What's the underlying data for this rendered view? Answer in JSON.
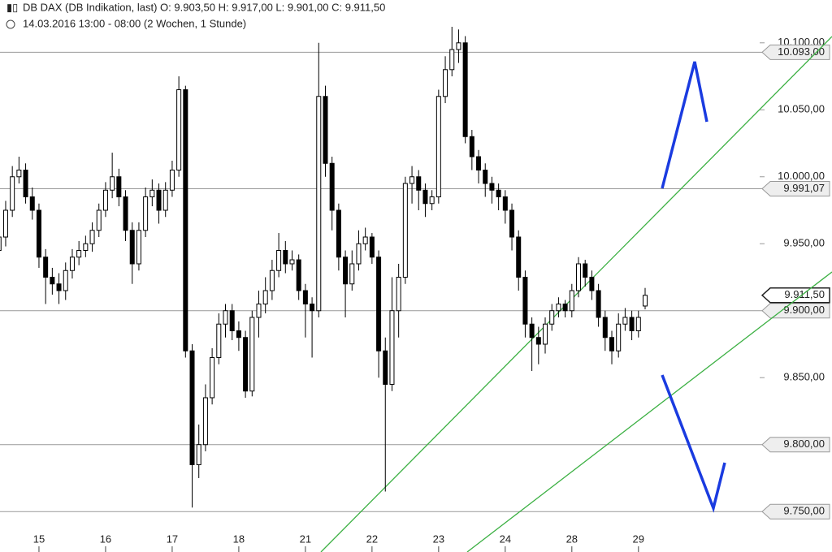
{
  "chart_data": {
    "type": "candlestick",
    "title": "DB DAX (DB Indikation, last)  O: 9.903,50  H: 9.917,00  L: 9.901,00  C: 9.911,50",
    "subtitle": "14.03.2016 13:00 - 08:00 (2 Wochen, 1 Stunde)",
    "x": [
      -6,
      -5,
      -4,
      -3,
      -2,
      -1,
      0,
      1,
      2,
      3,
      4,
      5,
      6,
      7,
      8,
      9,
      10,
      11,
      12,
      13,
      14,
      15,
      16,
      17,
      18,
      19,
      20,
      21,
      22,
      23,
      24,
      25,
      26,
      27,
      28,
      29,
      30,
      31,
      32,
      33,
      34,
      35,
      36,
      37,
      38,
      39,
      40,
      41,
      42,
      43,
      44,
      45,
      46,
      47,
      48,
      49,
      50,
      51,
      52,
      53,
      54,
      55,
      56,
      57,
      58,
      59,
      60,
      61,
      62,
      63,
      64,
      65,
      66,
      67,
      68,
      69,
      70,
      71,
      72,
      73,
      74,
      75,
      76,
      77,
      78,
      79,
      80,
      81,
      82,
      83,
      84,
      85,
      86,
      87,
      88,
      89,
      90,
      91
    ],
    "open": [
      9945,
      9955,
      9975,
      10000,
      10005,
      9985,
      9975,
      9940,
      9925,
      9920,
      9915,
      9930,
      9940,
      9945,
      9950,
      9960,
      9975,
      9990,
      10000,
      9985,
      9960,
      9935,
      9960,
      9985,
      9990,
      9975,
      9990,
      10005,
      10065,
      9870,
      9785,
      9800,
      9835,
      9865,
      9890,
      9900,
      9885,
      9880,
      9840,
      9895,
      9905,
      9915,
      9930,
      9945,
      9935,
      9938,
      9915,
      9905,
      9900,
      10060,
      10010,
      9975,
      9940,
      9920,
      9935,
      9950,
      9955,
      9940,
      9870,
      9845,
      9900,
      9925,
      9995,
      10000,
      9990,
      9980,
      9985,
      10060,
      10080,
      10095,
      10100,
      10030,
      10015,
      10005,
      9995,
      9990,
      9985,
      9975,
      9955,
      9925,
      9890,
      9880,
      9875,
      9890,
      9900,
      9905,
      9900,
      9915,
      9935,
      9925,
      9915,
      9895,
      9880,
      9870,
      9890,
      9895,
      9885,
      9903.5
    ],
    "high": [
      9965,
      9982,
      10008,
      10015,
      10010,
      9992,
      9980,
      9946,
      9932,
      9928,
      9936,
      9946,
      9952,
      9956,
      9966,
      9980,
      9996,
      10018,
      10006,
      9990,
      9966,
      9966,
      9992,
      9998,
      9995,
      9996,
      10012,
      10075,
      10068,
      9875,
      9815,
      9845,
      9872,
      9898,
      9905,
      9905,
      9892,
      9885,
      9900,
      9915,
      9925,
      9938,
      9958,
      9952,
      9945,
      9942,
      9920,
      9910,
      10100,
      10068,
      10015,
      9980,
      9945,
      9945,
      9960,
      9962,
      9958,
      9945,
      9880,
      9925,
      9935,
      10000,
      10008,
      10005,
      9995,
      9990,
      10065,
      10090,
      10112,
      10110,
      10105,
      10035,
      10020,
      10010,
      10000,
      9995,
      9990,
      9980,
      9960,
      9930,
      9895,
      9888,
      9895,
      9905,
      9910,
      9908,
      9920,
      9940,
      9938,
      9930,
      9920,
      9900,
      9885,
      9898,
      9902,
      9900,
      9900,
      9917
    ],
    "low": [
      9938,
      9948,
      9970,
      9995,
      9980,
      9968,
      9932,
      9905,
      9912,
      9905,
      9908,
      9924,
      9934,
      9940,
      9944,
      9955,
      9970,
      9984,
      9978,
      9952,
      9920,
      9930,
      9955,
      9978,
      9965,
      9970,
      9985,
      10000,
      9865,
      9753,
      9775,
      9795,
      9830,
      9860,
      9880,
      9878,
      9870,
      9835,
      9836,
      9880,
      9898,
      9908,
      9925,
      9928,
      9930,
      9908,
      9880,
      9865,
      9895,
      10000,
      9960,
      9930,
      9895,
      9915,
      9930,
      9945,
      9935,
      9850,
      9765,
      9840,
      9880,
      9920,
      9980,
      9975,
      9970,
      9975,
      9980,
      10055,
      10075,
      10085,
      10025,
      10005,
      9995,
      9985,
      9980,
      9975,
      9965,
      9945,
      9915,
      9880,
      9855,
      9860,
      9868,
      9885,
      9895,
      9895,
      9895,
      9910,
      9918,
      9908,
      9888,
      9870,
      9860,
      9865,
      9885,
      9878,
      9880,
      9901
    ],
    "close": [
      9955,
      9975,
      10000,
      10005,
      9985,
      9975,
      9940,
      9925,
      9920,
      9915,
      9930,
      9940,
      9945,
      9950,
      9960,
      9975,
      9990,
      10000,
      9985,
      9960,
      9935,
      9960,
      9985,
      9990,
      9975,
      9990,
      10005,
      10065,
      9870,
      9785,
      9800,
      9835,
      9865,
      9890,
      9900,
      9885,
      9880,
      9840,
      9895,
      9905,
      9915,
      9930,
      9945,
      9935,
      9938,
      9915,
      9905,
      9900,
      10060,
      10010,
      9975,
      9940,
      9920,
      9935,
      9950,
      9955,
      9940,
      9870,
      9845,
      9900,
      9925,
      9995,
      10000,
      9990,
      9980,
      9985,
      10060,
      10080,
      10095,
      10100,
      10030,
      10015,
      10005,
      9995,
      9990,
      9985,
      9975,
      9955,
      9925,
      9890,
      9880,
      9875,
      9890,
      9900,
      9905,
      9900,
      9915,
      9935,
      9925,
      9915,
      9895,
      9880,
      9870,
      9890,
      9895,
      9885,
      9895,
      9911.5
    ],
    "up_color": "#ffffff",
    "down_color": "#000000",
    "xlim": [
      -5.85,
      108.2
    ],
    "xticks": [
      {
        "value": 0,
        "label": "15"
      },
      {
        "value": 10,
        "label": "16"
      },
      {
        "value": 20,
        "label": "17"
      },
      {
        "value": 30,
        "label": "18"
      },
      {
        "value": 40,
        "label": "21"
      },
      {
        "value": 50,
        "label": "22"
      },
      {
        "value": 60,
        "label": "23"
      },
      {
        "value": 70,
        "label": "24"
      },
      {
        "value": 80,
        "label": "28"
      },
      {
        "value": 90,
        "label": "29"
      }
    ],
    "ylim": [
      9738,
      10132
    ],
    "yticks": [
      {
        "value": 10100,
        "label": "10.100,00"
      },
      {
        "value": 10050,
        "label": "10.050,00"
      },
      {
        "value": 10000,
        "label": "10.000,00"
      },
      {
        "value": 9950,
        "label": "9.950,00"
      },
      {
        "value": 9850,
        "label": "9.850,00"
      }
    ],
    "hlines": [
      {
        "value": 10093,
        "label": "10.093,00"
      },
      {
        "value": 9991.07,
        "label": "9.991,07"
      },
      {
        "value": 9900,
        "label": "9.900,00"
      },
      {
        "value": 9800,
        "label": "9.800,00"
      },
      {
        "value": 9750,
        "label": "9.750,00"
      }
    ],
    "last": {
      "value": 9911.5,
      "label": "9.911,50"
    }
  }
}
